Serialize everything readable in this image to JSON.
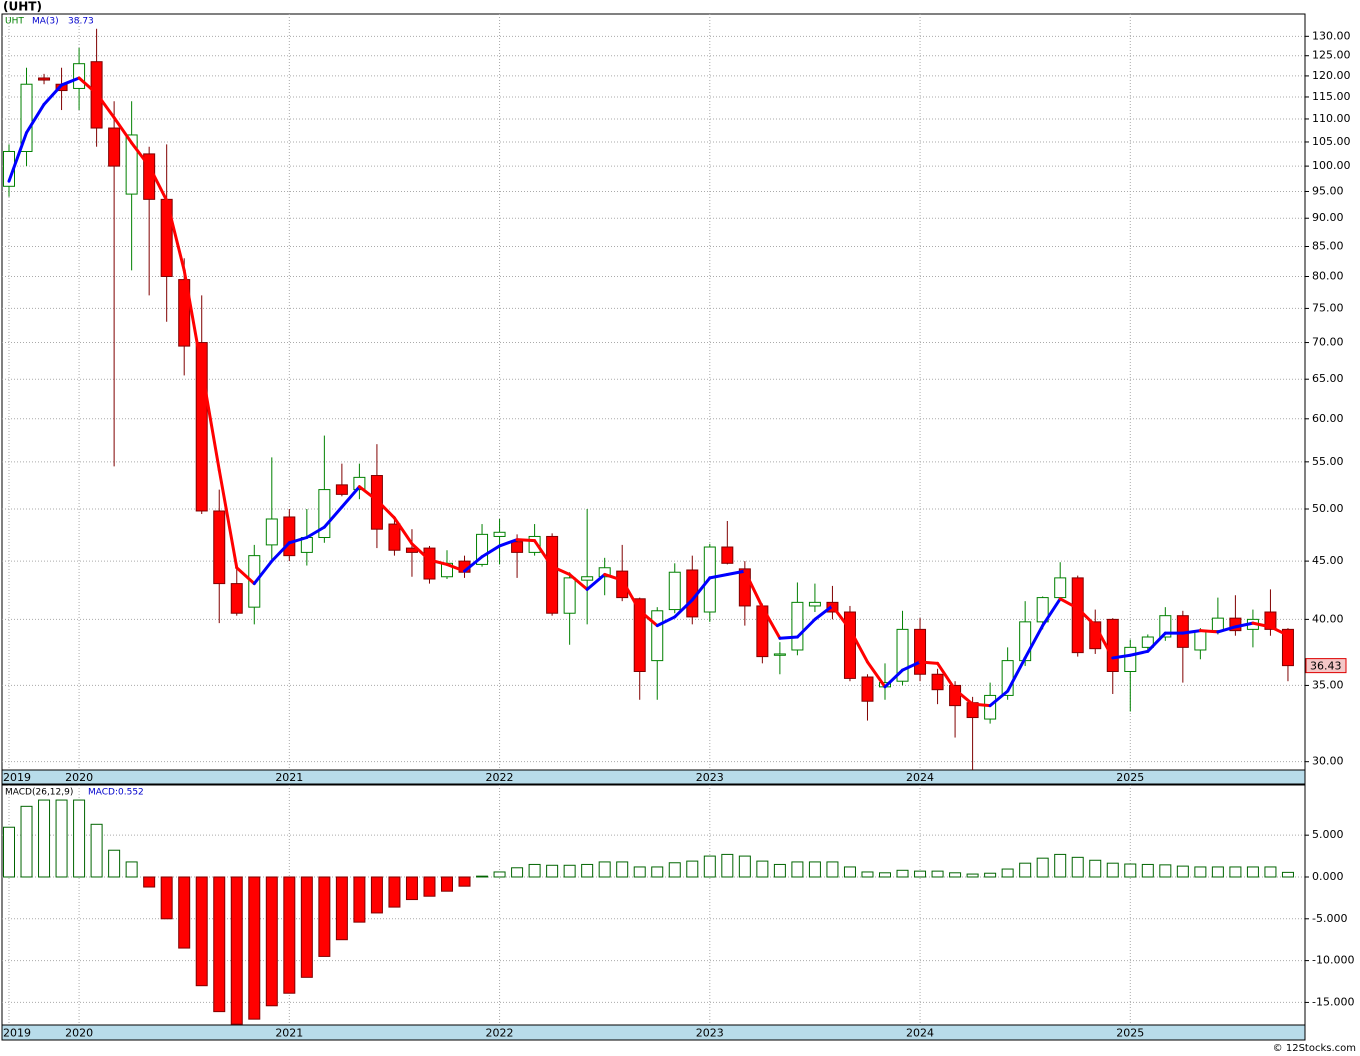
{
  "chart_data": [
    {
      "type": "candlestick",
      "title": "(UHT)",
      "symbol": "UHT",
      "log_scale": true,
      "grid": true,
      "categories": [
        "2019",
        null,
        null,
        null,
        "2020",
        null,
        null,
        null,
        null,
        null,
        null,
        null,
        null,
        null,
        null,
        null,
        "2021",
        null,
        null,
        null,
        null,
        null,
        null,
        null,
        null,
        null,
        null,
        null,
        "2022",
        null,
        null,
        null,
        null,
        null,
        null,
        null,
        null,
        null,
        null,
        null,
        "2023",
        null,
        null,
        null,
        null,
        null,
        null,
        null,
        null,
        null,
        null,
        null,
        "2024",
        null,
        null,
        null,
        null,
        null,
        null,
        null,
        null,
        null,
        null,
        null,
        "2025",
        null,
        null,
        null,
        null,
        null,
        null,
        null,
        null,
        null
      ],
      "open": [
        96,
        103,
        119.5,
        118,
        117,
        123.5,
        108,
        94.5,
        102.5,
        93.5,
        79.5,
        70,
        49.8,
        43,
        41,
        46.5,
        49.2,
        45.8,
        47.2,
        52.5,
        52,
        53.5,
        48.5,
        46.2,
        46.2,
        43.6,
        45,
        44.7,
        47.3,
        46.8,
        45.8,
        47.3,
        40.5,
        43.3,
        43.6,
        44.1,
        41.7,
        36.8,
        40.8,
        44.2,
        40.6,
        46.3,
        44.3,
        41.1,
        37.2,
        37.6,
        41.1,
        41.4,
        40.6,
        35.6,
        34.9,
        35.3,
        39.2,
        35.8,
        35,
        33.8,
        32.7,
        34.3,
        36.8,
        39.8,
        41.8,
        43.5,
        39.8,
        40,
        36,
        37.8,
        38.6,
        40.3,
        37.6,
        39.1,
        40.1,
        39.2,
        40.6,
        39.2
      ],
      "high": [
        104.5,
        122,
        120.5,
        122,
        127,
        132,
        114,
        114,
        104,
        104.5,
        83,
        77,
        52,
        44.5,
        46.5,
        55.5,
        50,
        50,
        58,
        54.8,
        54.8,
        57,
        49.3,
        48,
        46.4,
        46,
        45.5,
        48.5,
        49,
        47.5,
        48.5,
        47.6,
        44,
        50,
        45.3,
        46.5,
        41.8,
        41,
        44.8,
        45.5,
        46.6,
        48.8,
        45,
        41.3,
        38.2,
        43.1,
        43,
        42.8,
        41.1,
        35.8,
        36.6,
        40.7,
        40.1,
        36.2,
        35.3,
        34.2,
        35.2,
        37.8,
        41.5,
        41.9,
        44.9,
        43.7,
        40.8,
        40.1,
        38.4,
        38.8,
        41,
        40.7,
        39.3,
        41.8,
        42,
        40.8,
        42.5,
        39.3
      ],
      "low": [
        94,
        100,
        118,
        112,
        112,
        104,
        54.5,
        81,
        77,
        73,
        65.5,
        49.5,
        39.7,
        40.3,
        39.6,
        45,
        45,
        44.6,
        46.7,
        51.3,
        51,
        46.2,
        45.5,
        43.6,
        43,
        43.4,
        43.5,
        44.5,
        44.7,
        43.5,
        45.5,
        40.3,
        38,
        39.6,
        42,
        41.5,
        34,
        34,
        40.5,
        39.6,
        39.8,
        44.7,
        39.5,
        36.6,
        35.8,
        37.2,
        40.6,
        40,
        35.3,
        32.6,
        34,
        35,
        35.3,
        33.7,
        31.5,
        29.5,
        32.4,
        34,
        36.4,
        39.2,
        41.5,
        37.1,
        37.3,
        34.4,
        33.2,
        37.5,
        38.3,
        35.2,
        36.9,
        38.8,
        38.7,
        37.8,
        38.7,
        35.3
      ],
      "close": [
        103,
        118,
        119,
        116.5,
        123,
        108,
        100,
        106.5,
        93.5,
        80,
        69.5,
        49.8,
        43,
        40.5,
        45.5,
        49,
        45.5,
        47.2,
        52,
        51.5,
        53.3,
        48,
        46,
        45.8,
        43.4,
        44.8,
        44,
        47.5,
        47.7,
        45.8,
        47.3,
        40.5,
        43.5,
        43.6,
        44.4,
        41.8,
        36,
        40.7,
        44,
        40.2,
        46.3,
        44.8,
        41.1,
        37.1,
        37.3,
        41.4,
        41.4,
        40.6,
        35.5,
        33.9,
        35.2,
        39.2,
        35.8,
        34.7,
        33.6,
        32.8,
        34.3,
        36.8,
        39.8,
        41.8,
        43.5,
        37.4,
        37.7,
        36,
        37.8,
        38.6,
        40.3,
        37.8,
        39.1,
        40.1,
        39.1,
        40,
        39.2,
        36.43
      ],
      "up_color": "#008000",
      "down_color": "#ff0000",
      "ma": {
        "name": "MA(3)",
        "up_color": "#0000ff",
        "down_color": "#ff0000",
        "values": [
          97,
          107,
          113.3,
          117.8,
          119.5,
          115.8,
          110.3,
          104.8,
          100,
          93.3,
          81,
          66.4,
          54.1,
          44.4,
          43,
          45,
          46.7,
          47.2,
          48.2,
          50.2,
          52.3,
          50.9,
          49.1,
          46.6,
          45.1,
          44.7,
          44.1,
          45.4,
          46.4,
          47,
          46.9,
          44.5,
          43.8,
          42.5,
          43.8,
          43.3,
          40.7,
          39.5,
          40.2,
          41.6,
          43.5,
          43.8,
          44.1,
          41,
          38.5,
          38.6,
          40,
          41.1,
          39.2,
          36.7,
          34.9,
          36.1,
          36.7,
          36.6,
          34.7,
          33.7,
          33.6,
          34.6,
          37,
          39.5,
          41.7,
          40.9,
          39.5,
          37,
          37.2,
          37.5,
          38.9,
          38.9,
          39.1,
          39,
          39.4,
          39.7,
          39.4,
          38.73
        ]
      },
      "ylim": [
        29.5,
        136
      ],
      "yticks": [
        {
          "value": 30,
          "label": "30.00"
        },
        {
          "value": 35,
          "label": "35.00"
        },
        {
          "value": 40,
          "label": "40.00"
        },
        {
          "value": 45,
          "label": "45.00"
        },
        {
          "value": 50,
          "label": "50.00"
        },
        {
          "value": 55,
          "label": "55.00"
        },
        {
          "value": 60,
          "label": "60.00"
        },
        {
          "value": 65,
          "label": "65.00"
        },
        {
          "value": 70,
          "label": "70.00"
        },
        {
          "value": 75,
          "label": "75.00"
        },
        {
          "value": 80,
          "label": "80.00"
        },
        {
          "value": 85,
          "label": "85.00"
        },
        {
          "value": 90,
          "label": "90.00"
        },
        {
          "value": 95,
          "label": "95.00"
        },
        {
          "value": 100,
          "label": "100.00"
        },
        {
          "value": 105,
          "label": "105.00"
        },
        {
          "value": 110,
          "label": "110.00"
        },
        {
          "value": 115,
          "label": "115.00"
        },
        {
          "value": 120,
          "label": "120.00"
        },
        {
          "value": 125,
          "label": "125.00"
        },
        {
          "value": 130,
          "label": "130.00"
        }
      ]
    },
    {
      "type": "bar",
      "title": "MACD(26,12,9)",
      "legend_label": "MACD:0.552",
      "grid": true,
      "pos_color": "#006400",
      "neg_color": "#ff0000",
      "values": [
        5.95,
        8.45,
        9.2,
        9.2,
        9.2,
        6.3,
        3.2,
        1.8,
        -1.2,
        -5,
        -8.5,
        -13,
        -16.1,
        -17.6,
        -17,
        -15.4,
        -13.9,
        -12,
        -9.5,
        -7.5,
        -5.4,
        -4.3,
        -3.6,
        -2.7,
        -2.3,
        -1.7,
        -1.1,
        0.1,
        0.6,
        1.1,
        1.5,
        1.4,
        1.4,
        1.5,
        1.8,
        1.8,
        1.2,
        1.2,
        1.7,
        1.9,
        2.5,
        2.7,
        2.5,
        1.9,
        1.5,
        1.8,
        1.8,
        1.8,
        1.2,
        0.6,
        0.5,
        0.8,
        0.7,
        0.7,
        0.5,
        0.35,
        0.45,
        0.95,
        1.65,
        2.25,
        2.7,
        2.35,
        2,
        1.65,
        1.55,
        1.5,
        1.45,
        1.3,
        1.2,
        1.2,
        1.2,
        1.2,
        1.2,
        0.552
      ],
      "ylim": [
        -17.7,
        11
      ],
      "yticks": [
        {
          "value": -15,
          "label": "-15.000"
        },
        {
          "value": -10,
          "label": "-10.000"
        },
        {
          "value": -5,
          "label": "-5.000"
        },
        {
          "value": 0,
          "label": "0.000"
        },
        {
          "value": 5,
          "label": "5.000"
        }
      ]
    }
  ],
  "footer": "© 12Stocks.com"
}
